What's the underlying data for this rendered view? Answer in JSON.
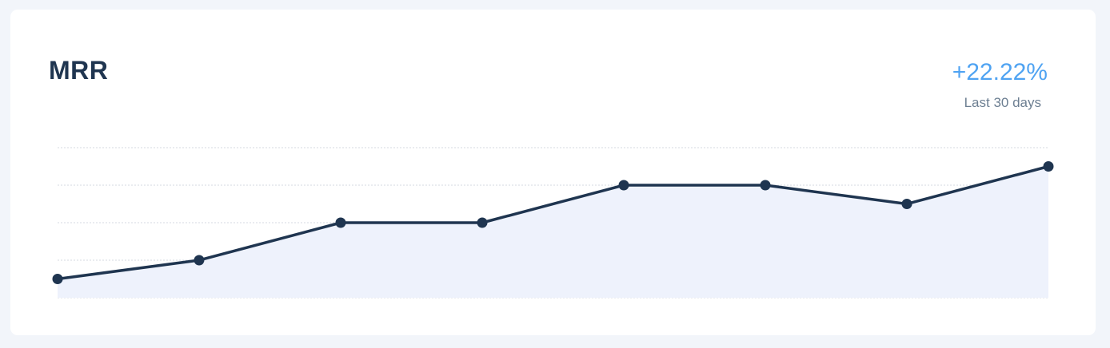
{
  "card": {
    "title": "MRR",
    "change": "+22.22%",
    "period": "Last 30 days"
  },
  "colors": {
    "line": "#1f3550",
    "fill": "#eef2fc",
    "grid": "#d4d9e0",
    "accent": "#4fa3f2"
  },
  "chart_data": {
    "type": "area",
    "x": [
      1,
      2,
      3,
      4,
      5,
      6,
      7,
      8
    ],
    "series": [
      {
        "values": [
          1,
          2,
          4,
          4,
          6,
          6,
          5,
          7
        ]
      }
    ],
    "ylim": [
      0,
      8
    ],
    "grid": true,
    "legend": "none"
  }
}
